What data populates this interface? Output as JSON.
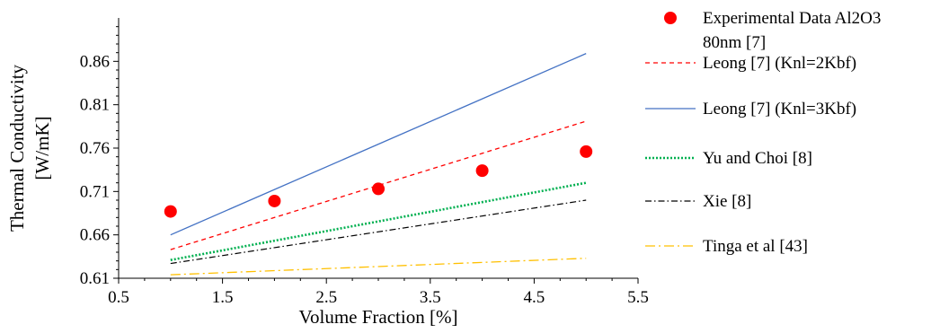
{
  "chart_data": {
    "type": "line",
    "title": "",
    "xlabel": "Volume Fraction [%]",
    "ylabel": "Thermal Conductivity [W/mK]",
    "ylabel_lines": [
      "Thermal Conductivity",
      "[W/mK]"
    ],
    "xlim": [
      0.5,
      5.5
    ],
    "ylim": [
      0.61,
      0.91
    ],
    "x_ticks": [
      0.5,
      1.5,
      2.5,
      3.5,
      4.5,
      5.5
    ],
    "x_tick_labels": [
      "0.5",
      "1.5",
      "2.5",
      "3.5",
      "4.5",
      "5.5"
    ],
    "y_ticks": [
      0.61,
      0.66,
      0.71,
      0.76,
      0.81,
      0.86
    ],
    "y_tick_labels": [
      "0.61",
      "0.66",
      "0.71",
      "0.76",
      "0.81",
      "0.86"
    ],
    "grid": false,
    "legend_position": "right",
    "series": [
      {
        "name": "Experimental Data Al2O3 80nm  [7]",
        "label_lines": [
          "Experimental Data Al2O3",
          "80nm  [7]"
        ],
        "kind": "scatter",
        "color": "#ff0000",
        "x": [
          1,
          2,
          3,
          4,
          5
        ],
        "y": [
          0.687,
          0.699,
          0.713,
          0.734,
          0.756
        ]
      },
      {
        "name": "Leong [7] (Knl=2Kbf)",
        "label_lines": [
          "Leong [7] (Knl=2Kbf)"
        ],
        "kind": "line",
        "style": "dashed",
        "color": "#ff0000",
        "x": [
          1,
          5
        ],
        "y": [
          0.643,
          0.791
        ]
      },
      {
        "name": "Leong [7] (Knl=3Kbf)",
        "label_lines": [
          "Leong [7] (Knl=3Kbf)"
        ],
        "kind": "line",
        "style": "solid",
        "color": "#4472c4",
        "x": [
          1,
          5
        ],
        "y": [
          0.66,
          0.869
        ]
      },
      {
        "name": "Yu and Choi [8]",
        "label_lines": [
          "Yu and Choi [8]"
        ],
        "kind": "line",
        "style": "dotted",
        "color": "#00b050",
        "x": [
          1,
          5
        ],
        "y": [
          0.631,
          0.72
        ]
      },
      {
        "name": "Xie [8]",
        "label_lines": [
          "Xie [8]"
        ],
        "kind": "line",
        "style": "dashdot",
        "color": "#000000",
        "x": [
          1,
          5
        ],
        "y": [
          0.627,
          0.7
        ]
      },
      {
        "name": "Tinga et al [43]",
        "label_lines": [
          "Tinga et al [43]"
        ],
        "kind": "line",
        "style": "longdashdot",
        "color": "#ffc000",
        "x": [
          1,
          5
        ],
        "y": [
          0.614,
          0.633
        ]
      }
    ]
  }
}
